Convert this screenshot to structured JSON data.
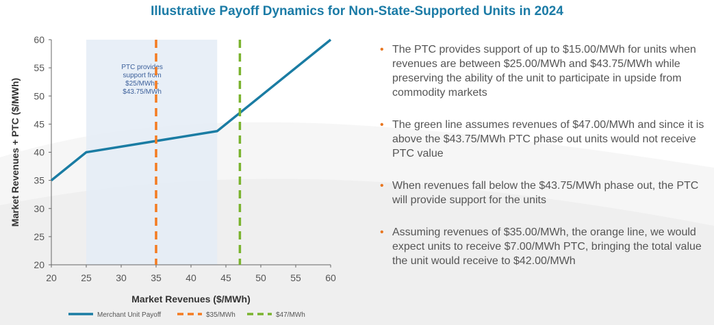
{
  "title": "Illustrative Payoff Dynamics for Non-State-Supported Units in 2024",
  "bullets": [
    "The PTC provides support of up to $15.00/MWh for units when revenues are between $25.00/MWh and $43.75/MWh while preserving the ability of the unit to participate in upside from commodity markets",
    "The green line assumes revenues of $47.00/MWh and since it is above the $43.75/MWh PTC phase out units would not receive PTC value",
    "When revenues fall below the $43.75/MWh phase out, the PTC will provide support for the units",
    "Assuming revenues of $35.00/MWh, the orange line, we would expect units to receive $7.00/MWh PTC, bringing the total value the unit would receive to $42.00/MWh"
  ],
  "bullet_marker": "•",
  "colors": {
    "title": "#1b7ba6",
    "payoff_line": "#1a7ca3",
    "orange": "#f47b20",
    "green": "#7ab32e",
    "shade": "#e4ecf6",
    "bullet_marker": "#e87722"
  },
  "chart_data": {
    "type": "line",
    "title": "",
    "xlabel": "Market Revenues ($/MWh)",
    "ylabel": "Market Revenues + PTC  ($/MWh)",
    "xlim": [
      20,
      60
    ],
    "ylim": [
      20,
      60
    ],
    "xticks": [
      20,
      25,
      30,
      35,
      40,
      45,
      50,
      55,
      60
    ],
    "yticks": [
      20,
      25,
      30,
      35,
      40,
      45,
      50,
      55,
      60
    ],
    "grid": false,
    "legend_position": "bottom",
    "shaded_region": {
      "x": [
        25,
        43.75
      ],
      "label_lines": [
        "PTC provides",
        "support from",
        "$25/MWh -",
        "$43.75/MWh"
      ]
    },
    "series": [
      {
        "name": "Merchant Unit Payoff",
        "style": "solid",
        "color": "#1a7ca3",
        "x": [
          20,
          25,
          43.75,
          60
        ],
        "y": [
          35,
          40,
          43.75,
          60
        ]
      },
      {
        "name": "$35/MWh",
        "style": "dashed",
        "color": "#f47b20",
        "vertical_x": 35
      },
      {
        "name": "$47/MWh",
        "style": "dashed",
        "color": "#7ab32e",
        "vertical_x": 47
      }
    ]
  }
}
